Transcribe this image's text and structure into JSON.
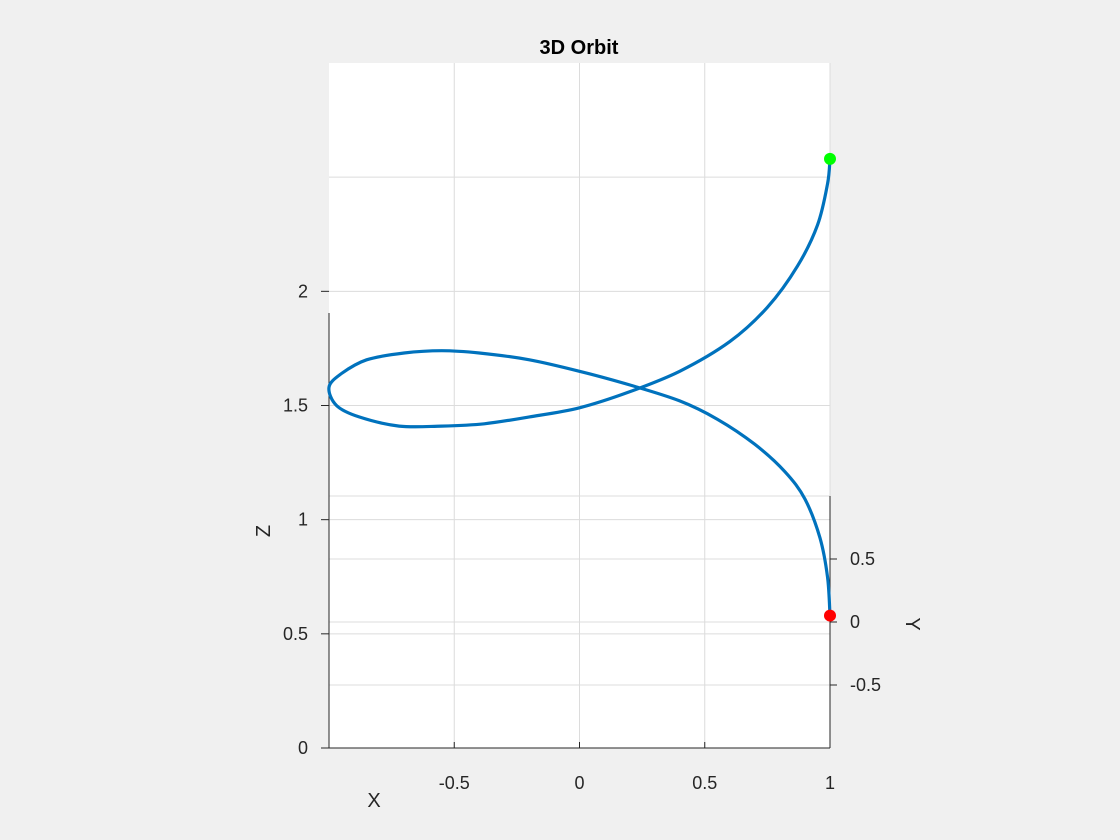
{
  "chart_data": {
    "type": "line",
    "title": "3D Orbit",
    "xlabel": "X",
    "ylabel": "Y",
    "zlabel": "Z",
    "xlim": [
      -1,
      1
    ],
    "ylim": [
      -1,
      1
    ],
    "zlim": [
      0,
      3
    ],
    "x_ticks": [
      -0.5,
      0,
      0.5,
      1
    ],
    "x_tick_labels": [
      "-0.5",
      "0",
      "0.5",
      "1"
    ],
    "y_ticks": [
      -0.5,
      0,
      0.5
    ],
    "y_tick_labels": [
      "-0.5",
      "0",
      "0.5"
    ],
    "z_ticks": [
      0,
      0.5,
      1,
      1.5,
      2
    ],
    "z_tick_labels": [
      "0",
      "0.5",
      "1",
      "1.5",
      "2"
    ],
    "grid": true,
    "view": "side",
    "series": [
      {
        "color": "#0072bd",
        "points": [
          {
            "x": 1.0,
            "z": 0.58
          },
          {
            "x": 0.99,
            "z": 0.75
          },
          {
            "x": 0.96,
            "z": 0.92
          },
          {
            "x": 0.9,
            "z": 1.09
          },
          {
            "x": 0.82,
            "z": 1.21
          },
          {
            "x": 0.7,
            "z": 1.33
          },
          {
            "x": 0.55,
            "z": 1.44
          },
          {
            "x": 0.4,
            "z": 1.52
          },
          {
            "x": 0.2,
            "z": 1.59
          },
          {
            "x": 0.0,
            "z": 1.65
          },
          {
            "x": -0.2,
            "z": 1.7
          },
          {
            "x": -0.4,
            "z": 1.73
          },
          {
            "x": -0.55,
            "z": 1.74
          },
          {
            "x": -0.7,
            "z": 1.73
          },
          {
            "x": -0.85,
            "z": 1.7
          },
          {
            "x": -0.95,
            "z": 1.64
          },
          {
            "x": -1.0,
            "z": 1.58
          },
          {
            "x": -0.97,
            "z": 1.5
          },
          {
            "x": -0.88,
            "z": 1.45
          },
          {
            "x": -0.72,
            "z": 1.41
          },
          {
            "x": -0.55,
            "z": 1.41
          },
          {
            "x": -0.38,
            "z": 1.42
          },
          {
            "x": -0.2,
            "z": 1.45
          },
          {
            "x": 0.0,
            "z": 1.49
          },
          {
            "x": 0.2,
            "z": 1.56
          },
          {
            "x": 0.4,
            "z": 1.65
          },
          {
            "x": 0.6,
            "z": 1.78
          },
          {
            "x": 0.75,
            "z": 1.93
          },
          {
            "x": 0.87,
            "z": 2.11
          },
          {
            "x": 0.95,
            "z": 2.29
          },
          {
            "x": 0.99,
            "z": 2.47
          },
          {
            "x": 1.0,
            "z": 2.58
          }
        ]
      }
    ],
    "markers": [
      {
        "x": 1.0,
        "z": 0.58,
        "color": "#ff0000"
      },
      {
        "x": 1.0,
        "z": 2.58,
        "color": "#00ff00"
      }
    ]
  }
}
